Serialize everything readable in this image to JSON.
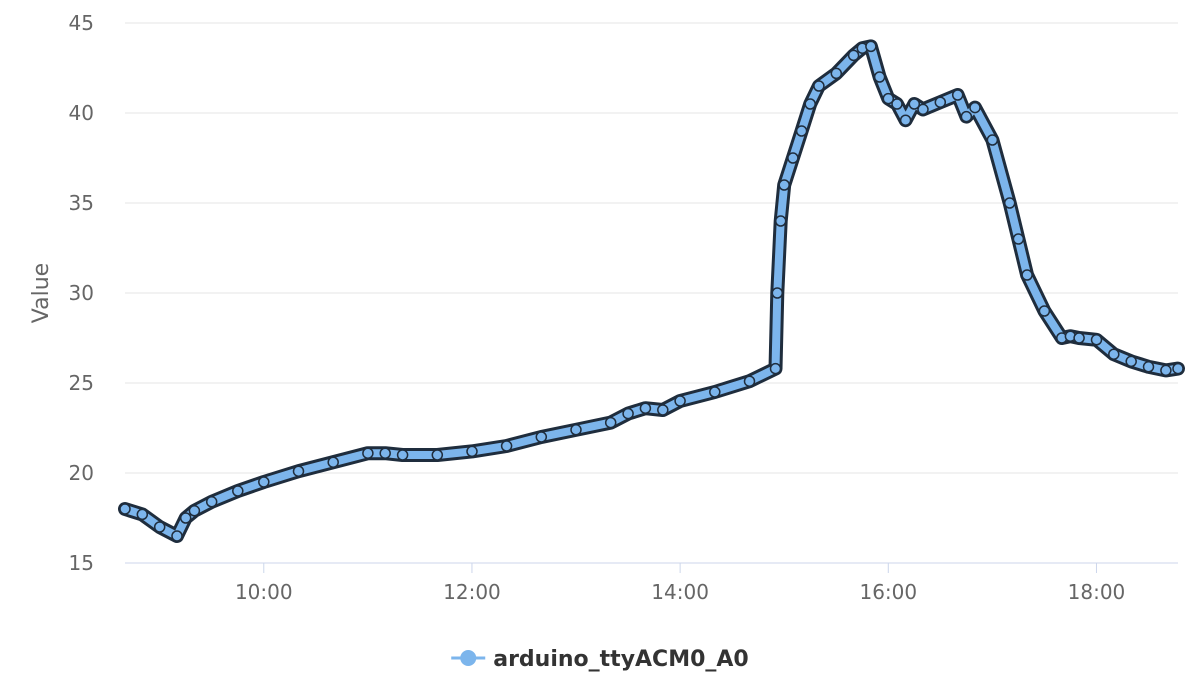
{
  "chart_data": {
    "type": "line",
    "title": "",
    "xlabel": "",
    "ylabel": "Value",
    "ylim": [
      15,
      45
    ],
    "yticks": [
      15,
      20,
      25,
      30,
      35,
      40,
      45
    ],
    "xlim": [
      "08:40",
      "18:47"
    ],
    "xticks": [
      "10:00",
      "12:00",
      "14:00",
      "16:00",
      "18:00"
    ],
    "grid": true,
    "legend_position": "bottom-center",
    "series": [
      {
        "name": "arduino_ttyACM0_A0",
        "color": "#7cb5ec",
        "marker_outline_color": "#1f2d3d",
        "x": [
          "08:40",
          "08:50",
          "09:00",
          "09:10",
          "09:15",
          "09:20",
          "09:30",
          "09:45",
          "10:00",
          "10:20",
          "10:40",
          "11:00",
          "11:10",
          "11:20",
          "11:40",
          "12:00",
          "12:20",
          "12:40",
          "13:00",
          "13:20",
          "13:30",
          "13:40",
          "13:50",
          "14:00",
          "14:20",
          "14:40",
          "14:55",
          "14:56",
          "14:58",
          "15:00",
          "15:05",
          "15:10",
          "15:15",
          "15:20",
          "15:30",
          "15:40",
          "15:45",
          "15:50",
          "15:55",
          "16:00",
          "16:05",
          "16:10",
          "16:15",
          "16:20",
          "16:30",
          "16:40",
          "16:45",
          "16:50",
          "17:00",
          "17:10",
          "17:15",
          "17:20",
          "17:30",
          "17:40",
          "17:45",
          "17:50",
          "18:00",
          "18:10",
          "18:20",
          "18:30",
          "18:40",
          "18:47"
        ],
        "values": [
          18.0,
          17.7,
          17.0,
          16.5,
          17.5,
          17.9,
          18.4,
          19.0,
          19.5,
          20.1,
          20.6,
          21.1,
          21.1,
          21.0,
          21.0,
          21.2,
          21.5,
          22.0,
          22.4,
          22.8,
          23.3,
          23.6,
          23.5,
          24.0,
          24.5,
          25.1,
          25.8,
          30.0,
          34.0,
          36.0,
          37.5,
          39.0,
          40.5,
          41.5,
          42.2,
          43.2,
          43.6,
          43.7,
          42.0,
          40.8,
          40.5,
          39.6,
          40.5,
          40.2,
          40.6,
          41.0,
          39.8,
          40.3,
          38.5,
          35.0,
          33.0,
          31.0,
          29.0,
          27.5,
          27.6,
          27.5,
          27.4,
          26.6,
          26.2,
          25.9,
          25.7,
          25.8
        ]
      }
    ]
  }
}
